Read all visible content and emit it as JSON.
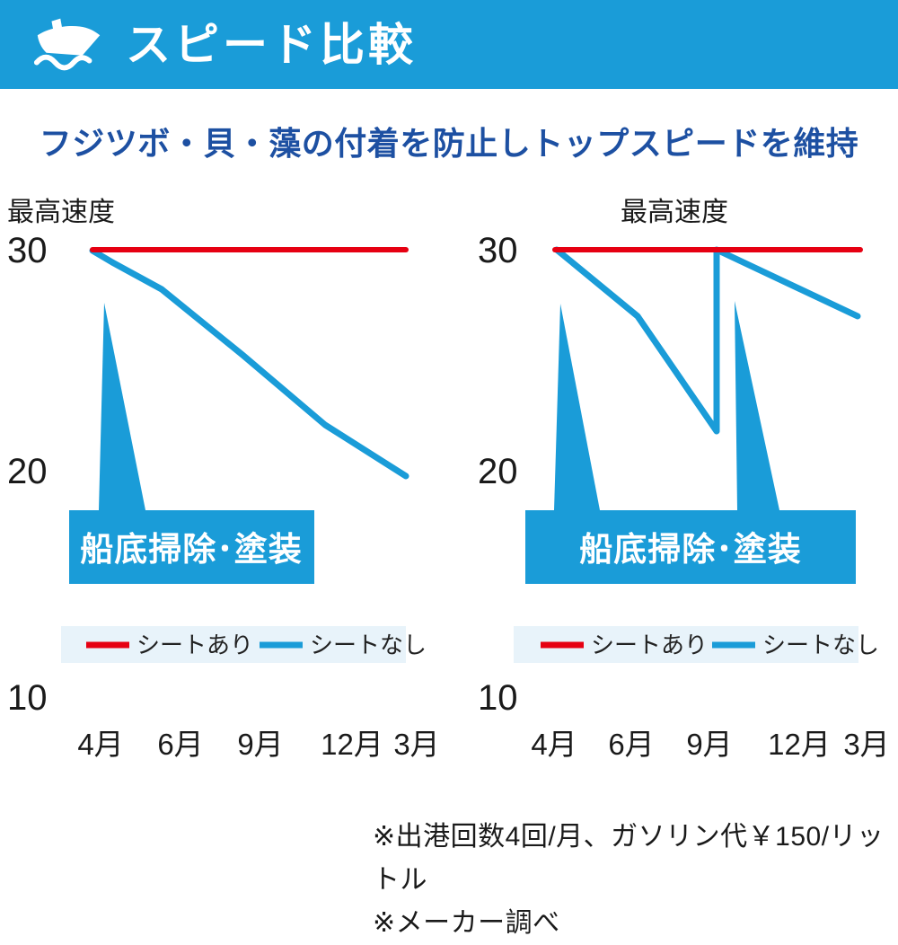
{
  "header": {
    "title": "スピード比較",
    "icon": "boat-icon",
    "background_color": "#1a9cd8"
  },
  "subtitle": "フジツボ・貝・藻の付着を防止しトップスピードを維持",
  "colors": {
    "main_blue": "#1a9cd8",
    "red": "#e60012",
    "subtitle_blue": "#1d50a2",
    "legend_background": "#e8f3fa",
    "text_dark": "#1a1a1a"
  },
  "charts": [
    {
      "axis_title": "最高速度",
      "y_ticks": [
        "30",
        "20",
        "10"
      ],
      "x_ticks": [
        "4月",
        "6月",
        "9月",
        "12月",
        "3月"
      ],
      "callout": "船底掃除･塗装",
      "legend": [
        {
          "label": "シートあり",
          "color": "#e60012"
        },
        {
          "label": "シートなし",
          "color": "#1a9cd8"
        }
      ],
      "geom": {
        "sheet_line": [
          [
            103,
            78
          ],
          [
            452,
            78
          ]
        ],
        "no_sheet_line": [
          [
            103,
            79
          ],
          [
            125,
            92
          ],
          [
            180,
            122
          ],
          [
            270,
            195
          ],
          [
            362,
            273
          ],
          [
            452,
            330
          ]
        ],
        "spikes": [
          [
            [
              116,
              137
            ],
            [
              110,
              368
            ],
            [
              162,
              368
            ]
          ]
        ]
      }
    },
    {
      "axis_title": "最高速度",
      "y_ticks": [
        "30",
        "20",
        "10"
      ],
      "x_ticks": [
        "4月",
        "6月",
        "9月",
        "12月",
        "3月"
      ],
      "callout": "船底掃除･塗装",
      "legend": [
        {
          "label": "シートあり",
          "color": "#e60012"
        },
        {
          "label": "シートなし",
          "color": "#1a9cd8"
        }
      ],
      "geom": {
        "sheet_line": [
          [
            118,
            78
          ],
          [
            458,
            78
          ]
        ],
        "no_sheet_line": [
          [
            120,
            78
          ],
          [
            210,
            152
          ],
          [
            298,
            280
          ],
          [
            298,
            78
          ],
          [
            455,
            152
          ]
        ],
        "spikes": [
          [
            [
              124,
              138
            ],
            [
              117,
              368
            ],
            [
              168,
              368
            ]
          ],
          [
            [
              318,
              135
            ],
            [
              321,
              368
            ],
            [
              368,
              368
            ]
          ]
        ]
      }
    }
  ],
  "footnotes": [
    "※出港回数4回/月、ガソリン代￥150/リットル",
    "※メーカー調べ"
  ],
  "chart_data": [
    {
      "type": "line",
      "title": "最高速度",
      "x": [
        "4月",
        "6月",
        "9月",
        "12月",
        "3月"
      ],
      "ylim": [
        10,
        30
      ],
      "y_ticks": [
        30,
        20,
        10
      ],
      "grid": false,
      "legend_position": "bottom",
      "series": [
        {
          "name": "シートあり",
          "color": "#e60012",
          "values": [
            30,
            30,
            30,
            30,
            30
          ]
        },
        {
          "name": "シートなし",
          "color": "#1a9cd8",
          "values": [
            30,
            27.5,
            24.5,
            21.5,
            20
          ]
        }
      ],
      "annotation": {
        "label": "船底掃除･塗装",
        "arrows_at": [
          "4月"
        ]
      }
    },
    {
      "type": "line",
      "title": "最高速度",
      "x": [
        "4月",
        "6月",
        "9月",
        "12月",
        "3月"
      ],
      "ylim": [
        10,
        30
      ],
      "y_ticks": [
        30,
        20,
        10
      ],
      "grid": false,
      "legend_position": "bottom",
      "series": [
        {
          "name": "シートあり",
          "color": "#e60012",
          "values": [
            30,
            30,
            30,
            30,
            30
          ]
        },
        {
          "name": "シートなし",
          "color": "#1a9cd8",
          "points": [
            {
              "x": "4月",
              "y": 30
            },
            {
              "x": "6月",
              "y": 27
            },
            {
              "x": "9月",
              "y": 22
            },
            {
              "x": "9月(掃除後)",
              "y": 30
            },
            {
              "x": "12月",
              "y": 28
            },
            {
              "x": "3月",
              "y": 27
            }
          ]
        }
      ],
      "annotation": {
        "label": "船底掃除･塗装",
        "arrows_at": [
          "4月",
          "10月"
        ]
      }
    }
  ]
}
